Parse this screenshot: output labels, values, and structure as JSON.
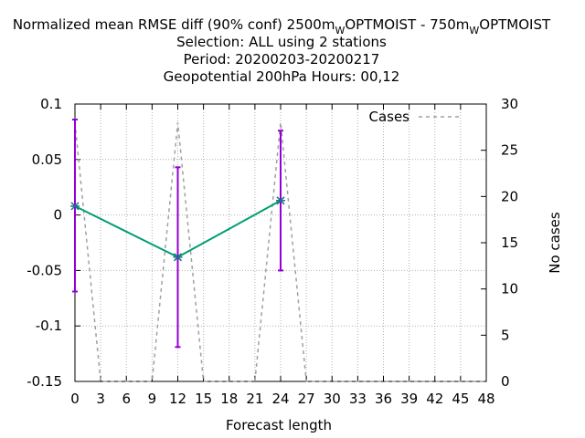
{
  "chart_data": {
    "type": "line",
    "title_lines": [
      {
        "parts": [
          {
            "text": "Normalized mean RMSE diff (90% conf) 2500m"
          },
          {
            "text": "W",
            "sub": true
          },
          {
            "text": "OPTMOIST - 750m"
          },
          {
            "text": "W",
            "sub": true
          },
          {
            "text": "OPTMOIST"
          }
        ]
      },
      {
        "parts": [
          {
            "text": "Selection: ALL using     2 stations"
          }
        ]
      },
      {
        "parts": [
          {
            "text": "Period: 20200203-20200217"
          }
        ]
      },
      {
        "parts": [
          {
            "text": "Geopotential 200hPa   Hours:  00,12"
          }
        ]
      }
    ],
    "xlabel": "Forecast length",
    "ylabel": "",
    "y2label": "No cases",
    "xlim": [
      0,
      48
    ],
    "ylim": [
      -0.15,
      0.1
    ],
    "y2lim": [
      0,
      30
    ],
    "x_ticks": [
      0,
      3,
      6,
      9,
      12,
      15,
      18,
      21,
      24,
      27,
      30,
      33,
      36,
      39,
      42,
      45,
      48
    ],
    "y_ticks": [
      -0.15,
      -0.1,
      -0.05,
      0,
      0.05,
      0.1
    ],
    "y_tick_labels": [
      "-0.15",
      "-0.1",
      "-0.05",
      "0",
      "0.05",
      "0.1"
    ],
    "y2_ticks": [
      0,
      5,
      10,
      15,
      20,
      25,
      30
    ],
    "grid": true,
    "legend": {
      "placement": "top-right",
      "entries": [
        "Cases"
      ]
    },
    "series": [
      {
        "role": "rmse_diff",
        "axis": "y",
        "color": "#009e73",
        "errorbar_color": "#9400d3",
        "x": [
          0,
          12,
          24
        ],
        "y": [
          0.008,
          -0.038,
          0.013
        ],
        "err_low": [
          -0.069,
          -0.119,
          -0.05
        ],
        "err_high": [
          0.086,
          0.043,
          0.076
        ]
      },
      {
        "name": "Cases",
        "role": "cases",
        "axis": "y2",
        "color": "#a0a0a0",
        "dashed": true,
        "x": [
          0,
          3,
          9,
          12,
          15,
          21,
          24,
          27,
          48
        ],
        "y": [
          28,
          0,
          0,
          28,
          0,
          0,
          28,
          0,
          0
        ]
      }
    ]
  }
}
